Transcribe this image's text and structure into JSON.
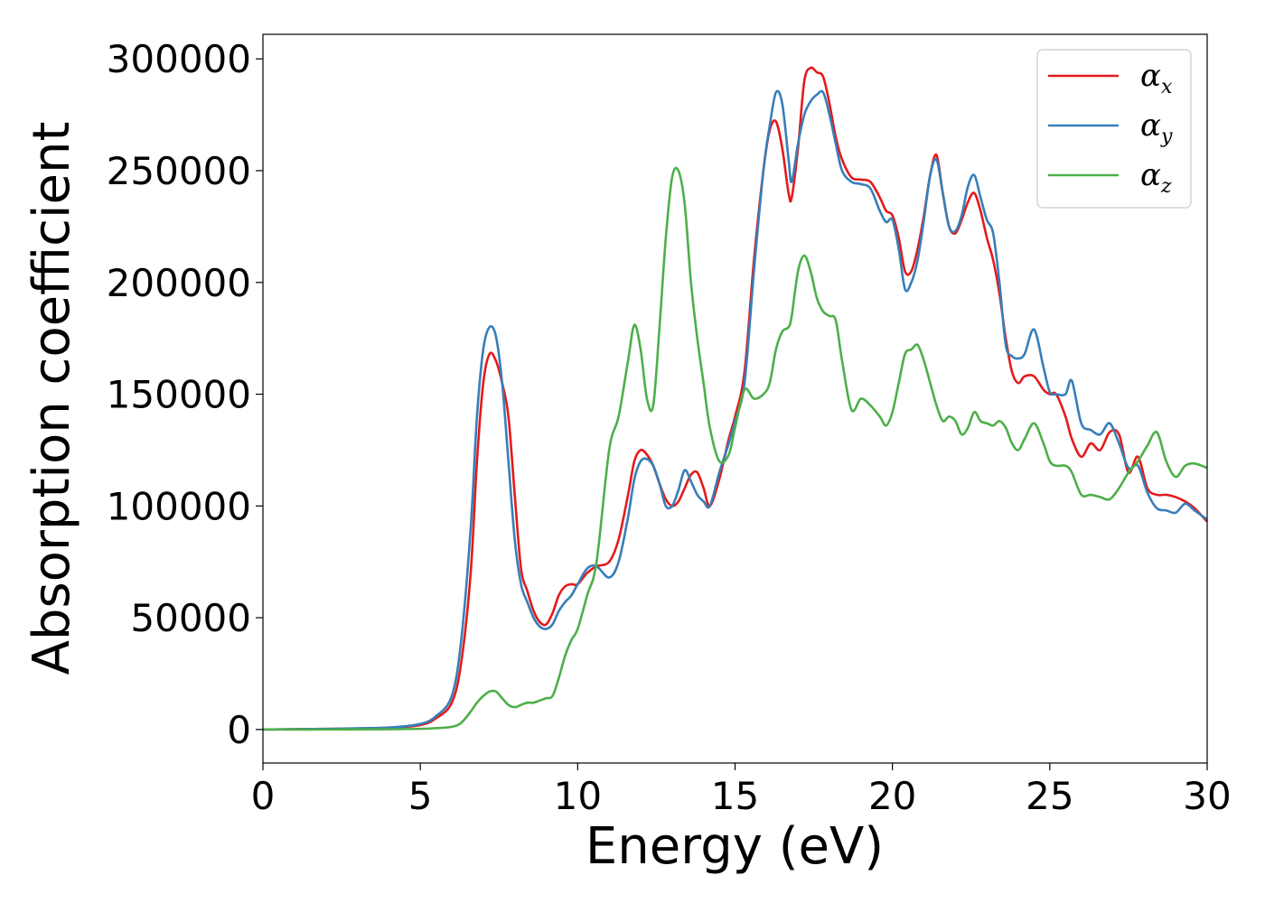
{
  "chart_data": {
    "type": "line",
    "title": "",
    "xlabel": "Energy (eV)",
    "ylabel": "Absorption coefficient",
    "xlim": [
      0,
      30
    ],
    "ylim": [
      -15000,
      311000
    ],
    "xticks": [
      0,
      5,
      10,
      15,
      20,
      25,
      30
    ],
    "yticks": [
      0,
      50000,
      100000,
      150000,
      200000,
      250000,
      300000
    ],
    "xtick_labels": [
      "0",
      "5",
      "10",
      "15",
      "20",
      "25",
      "30"
    ],
    "ytick_labels": [
      "0",
      "50000",
      "100000",
      "150000",
      "200000",
      "250000",
      "300000"
    ],
    "grid": false,
    "legend_position": "top-right",
    "series": [
      {
        "name": "α_x",
        "label_base": "α",
        "label_sub": "x",
        "color": "#e41a1c",
        "x": [
          0,
          2,
          4,
          5,
          5.5,
          6,
          6.3,
          6.6,
          6.8,
          7,
          7.2,
          7.4,
          7.6,
          7.8,
          8,
          8.2,
          8.4,
          8.6,
          8.8,
          9,
          9.2,
          9.4,
          9.6,
          9.8,
          10,
          10.3,
          10.6,
          11,
          11.3,
          11.6,
          11.8,
          12,
          12.2,
          12.4,
          12.6,
          12.8,
          13,
          13.2,
          13.4,
          13.6,
          13.8,
          14,
          14.2,
          14.5,
          14.8,
          15,
          15.3,
          15.6,
          15.9,
          16.1,
          16.3,
          16.5,
          16.7,
          16.8,
          17,
          17.2,
          17.4,
          17.6,
          17.8,
          18,
          18.2,
          18.4,
          18.7,
          19,
          19.3,
          19.6,
          19.8,
          20,
          20.2,
          20.4,
          20.6,
          20.8,
          21,
          21.2,
          21.4,
          21.6,
          21.8,
          22,
          22.2,
          22.4,
          22.6,
          22.8,
          23,
          23.2,
          23.4,
          23.6,
          23.8,
          24,
          24.2,
          24.5,
          24.8,
          25,
          25.2,
          25.5,
          25.7,
          26,
          26.3,
          26.6,
          26.9,
          27.2,
          27.5,
          27.8,
          28.1,
          28.4,
          28.7,
          29,
          29.3,
          29.6,
          30
        ],
        "y": [
          0,
          300,
          800,
          2000,
          5000,
          12000,
          30000,
          70000,
          120000,
          155000,
          168000,
          165000,
          155000,
          140000,
          105000,
          72000,
          62000,
          53000,
          48000,
          47000,
          52000,
          60000,
          64000,
          65000,
          65000,
          70000,
          73000,
          75000,
          85000,
          105000,
          120000,
          125000,
          123000,
          118000,
          110000,
          103000,
          100000,
          102000,
          108000,
          114000,
          115000,
          108000,
          100000,
          112000,
          130000,
          140000,
          160000,
          210000,
          250000,
          268000,
          272000,
          260000,
          240000,
          238000,
          260000,
          290000,
          296000,
          294000,
          292000,
          280000,
          265000,
          255000,
          247000,
          246000,
          245000,
          238000,
          232000,
          230000,
          220000,
          205000,
          205000,
          215000,
          230000,
          248000,
          257000,
          240000,
          225000,
          222000,
          228000,
          236000,
          240000,
          232000,
          220000,
          210000,
          195000,
          175000,
          160000,
          155000,
          158000,
          158000,
          152000,
          150000,
          150000,
          140000,
          130000,
          122000,
          128000,
          125000,
          133000,
          132000,
          115000,
          122000,
          108000,
          105000,
          105000,
          104000,
          102000,
          99000,
          93000
        ]
      },
      {
        "name": "α_y",
        "label_base": "α",
        "label_sub": "y",
        "color": "#377eb8",
        "x": [
          0,
          2,
          4,
          5,
          5.5,
          6,
          6.3,
          6.6,
          6.8,
          7,
          7.2,
          7.4,
          7.6,
          7.8,
          8,
          8.2,
          8.4,
          8.6,
          8.8,
          9,
          9.2,
          9.4,
          9.6,
          9.8,
          10,
          10.3,
          10.6,
          11,
          11.3,
          11.6,
          11.8,
          12,
          12.2,
          12.4,
          12.6,
          12.8,
          13,
          13.2,
          13.4,
          13.6,
          13.8,
          14,
          14.2,
          14.5,
          14.8,
          15,
          15.3,
          15.6,
          15.9,
          16.1,
          16.3,
          16.5,
          16.7,
          16.8,
          17,
          17.2,
          17.4,
          17.6,
          17.8,
          18,
          18.2,
          18.4,
          18.7,
          19,
          19.3,
          19.6,
          19.8,
          20,
          20.2,
          20.4,
          20.6,
          20.8,
          21,
          21.2,
          21.4,
          21.6,
          21.8,
          22,
          22.2,
          22.4,
          22.6,
          22.8,
          23,
          23.2,
          23.4,
          23.6,
          23.8,
          24,
          24.2,
          24.5,
          24.8,
          25,
          25.2,
          25.5,
          25.7,
          26,
          26.3,
          26.6,
          26.9,
          27.2,
          27.5,
          27.8,
          28.1,
          28.4,
          28.7,
          29,
          29.3,
          29.6,
          30
        ],
        "y": [
          0,
          300,
          900,
          2500,
          6000,
          15000,
          40000,
          90000,
          140000,
          170000,
          180000,
          176000,
          155000,
          120000,
          85000,
          65000,
          57000,
          50000,
          46000,
          45000,
          47000,
          53000,
          57000,
          60000,
          65000,
          72000,
          73000,
          68000,
          75000,
          95000,
          112000,
          120000,
          121000,
          118000,
          110000,
          100000,
          100000,
          107000,
          116000,
          111000,
          105000,
          102000,
          100000,
          115000,
          128000,
          138000,
          155000,
          205000,
          250000,
          270000,
          285000,
          280000,
          255000,
          245000,
          262000,
          275000,
          281000,
          284000,
          285000,
          275000,
          262000,
          250000,
          245000,
          244000,
          242000,
          232000,
          227000,
          228000,
          215000,
          197000,
          200000,
          210000,
          228000,
          248000,
          255000,
          240000,
          225000,
          223000,
          230000,
          243000,
          248000,
          238000,
          228000,
          222000,
          200000,
          172000,
          167000,
          166000,
          168000,
          179000,
          162000,
          151000,
          150000,
          150000,
          156000,
          137000,
          134000,
          132000,
          137000,
          128000,
          117000,
          118000,
          106000,
          99000,
          98000,
          97000,
          101000,
          98000,
          94000
        ]
      },
      {
        "name": "α_z",
        "label_base": "α",
        "label_sub": "z",
        "color": "#4daf4a",
        "x": [
          0,
          2,
          4,
          5,
          5.5,
          6,
          6.3,
          6.6,
          6.8,
          7,
          7.2,
          7.4,
          7.6,
          7.8,
          8,
          8.2,
          8.4,
          8.6,
          8.8,
          9,
          9.2,
          9.4,
          9.6,
          9.8,
          10,
          10.3,
          10.6,
          11,
          11.3,
          11.6,
          11.8,
          12,
          12.2,
          12.4,
          12.6,
          12.8,
          13,
          13.2,
          13.4,
          13.6,
          13.8,
          14,
          14.2,
          14.5,
          14.8,
          15,
          15.3,
          15.6,
          15.9,
          16.1,
          16.3,
          16.5,
          16.7,
          16.8,
          17,
          17.2,
          17.4,
          17.6,
          17.8,
          18,
          18.2,
          18.4,
          18.7,
          19,
          19.3,
          19.6,
          19.8,
          20,
          20.2,
          20.4,
          20.6,
          20.8,
          21,
          21.2,
          21.4,
          21.6,
          21.8,
          22,
          22.2,
          22.4,
          22.6,
          22.8,
          23,
          23.2,
          23.4,
          23.6,
          23.8,
          24,
          24.2,
          24.5,
          24.8,
          25,
          25.2,
          25.5,
          25.7,
          26,
          26.3,
          26.6,
          26.9,
          27.2,
          27.5,
          27.8,
          28.1,
          28.4,
          28.7,
          29,
          29.3,
          29.6,
          30
        ],
        "y": [
          0,
          0,
          100,
          300,
          600,
          1200,
          3000,
          8000,
          12000,
          15000,
          17000,
          17000,
          14000,
          11000,
          10000,
          11000,
          12000,
          12000,
          13000,
          14000,
          15000,
          23000,
          33000,
          40000,
          45000,
          60000,
          75000,
          125000,
          140000,
          165000,
          181000,
          170000,
          148000,
          145000,
          180000,
          220000,
          247000,
          250000,
          235000,
          200000,
          175000,
          155000,
          135000,
          120000,
          123000,
          135000,
          152000,
          148000,
          150000,
          155000,
          170000,
          178000,
          180000,
          185000,
          205000,
          212000,
          205000,
          193000,
          187000,
          185000,
          183000,
          165000,
          143000,
          148000,
          145000,
          140000,
          136000,
          142000,
          155000,
          168000,
          170000,
          172000,
          165000,
          155000,
          145000,
          138000,
          140000,
          138000,
          132000,
          135000,
          142000,
          138000,
          137000,
          136000,
          138000,
          135000,
          128000,
          125000,
          130000,
          137000,
          128000,
          120000,
          118000,
          118000,
          115000,
          105000,
          105000,
          104000,
          103000,
          108000,
          115000,
          120000,
          127000,
          133000,
          120000,
          113000,
          118000,
          119000,
          117000
        ]
      }
    ]
  }
}
